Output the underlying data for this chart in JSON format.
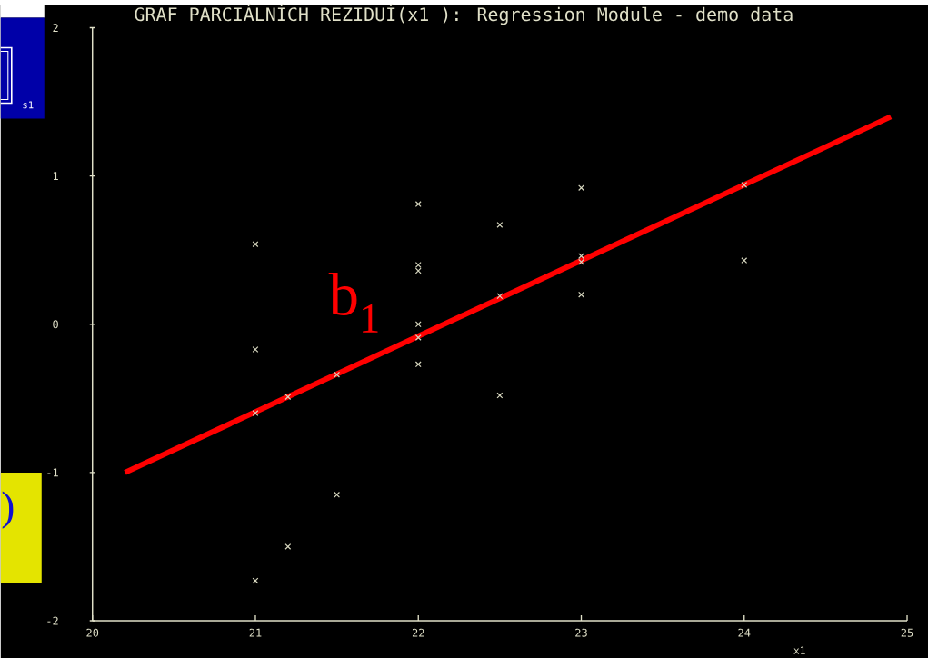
{
  "chart_data": {
    "type": "scatter",
    "title": "GRAF PARCIÁLNÍCH REZIDUÍ(x1 ): Regression Module - demo data",
    "xlabel": "x1",
    "xlim": [
      20,
      25
    ],
    "ylim": [
      -2,
      2
    ],
    "xticks": [
      20,
      21,
      22,
      23,
      24,
      25
    ],
    "yticks": [
      -2,
      -1,
      0,
      1,
      2
    ],
    "marker": "cross",
    "series": [
      {
        "color": "#d8d8c0",
        "x": [
          21,
          21,
          21,
          21,
          21.2,
          21.2,
          21.5,
          21.5,
          22,
          22,
          22,
          22,
          22,
          22,
          22.5,
          22.5,
          22.5,
          23,
          23,
          23,
          23,
          24,
          24
        ],
        "values": [
          0.54,
          -0.17,
          -0.6,
          -1.73,
          -0.49,
          -1.5,
          -0.34,
          -1.15,
          0.81,
          0.4,
          0.36,
          0,
          -0.09,
          -0.27,
          0.67,
          0.19,
          -0.48,
          0.92,
          0.46,
          0.42,
          0.2,
          0.94,
          0.43
        ]
      },
      {
        "type": "line",
        "name": "b$_{1}$",
        "color": "#ff0000",
        "marker": "none",
        "x": [
          20.2,
          24.9
        ],
        "values": [
          -1.0,
          1.4
        ]
      }
    ],
    "annotations": [
      "s1",
      ")"
    ]
  }
}
